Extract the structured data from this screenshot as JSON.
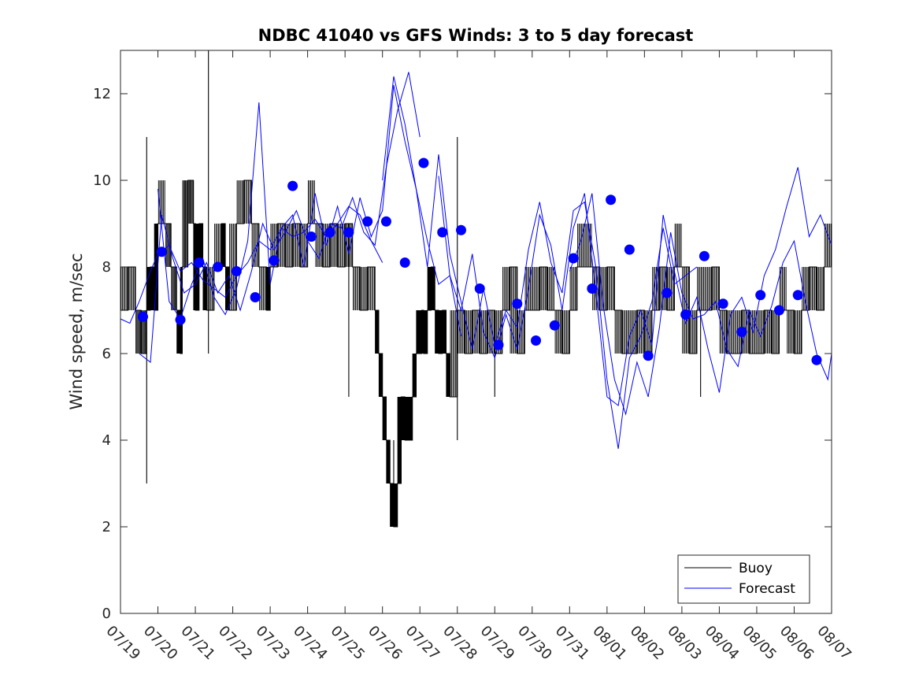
{
  "chart_data": {
    "type": "line",
    "title": "NDBC 41040 vs GFS Winds: 3 to 5 day forecast",
    "xlabel": "",
    "ylabel": "Wind speed, m/sec",
    "ylim": [
      0,
      13
    ],
    "yticks": [
      0,
      2,
      4,
      6,
      8,
      10,
      12
    ],
    "xlim_days": [
      0,
      19
    ],
    "xticks": [
      "07/19",
      "07/20",
      "07/21",
      "07/22",
      "07/23",
      "07/24",
      "07/25",
      "07/26",
      "07/27",
      "07/28",
      "07/29",
      "07/30",
      "07/31",
      "08/01",
      "08/02",
      "08/03",
      "08/04",
      "08/05",
      "08/06",
      "08/07"
    ],
    "grid": false,
    "legend": {
      "placement": "bottom-right",
      "entries": [
        "Buoy",
        "Forecast"
      ]
    },
    "colors": {
      "buoy": "#000000",
      "forecast": "#0000ff",
      "verification": "#0000ff",
      "axis": "#262626"
    },
    "buoy_series": {
      "name": "Buoy",
      "x": [
        0,
        0.2,
        0.4,
        0.55,
        0.7,
        0.8,
        0.9,
        1.0,
        1.2,
        1.35,
        1.5,
        1.6,
        1.65,
        1.8,
        1.95,
        2.0,
        2.1,
        2.2,
        2.3,
        2.5,
        2.7,
        2.8,
        2.9,
        3.1,
        3.3,
        3.5,
        3.7,
        3.9,
        4.0,
        4.2,
        4.4,
        4.6,
        4.8,
        5.0,
        5.2,
        5.4,
        5.6,
        5.8,
        6.0,
        6.2,
        6.4,
        6.6,
        6.8,
        6.9,
        7.0,
        7.1,
        7.2,
        7.3,
        7.4,
        7.5,
        7.6,
        7.7,
        7.8,
        7.9,
        8.0,
        8.05,
        8.1,
        8.2,
        8.3,
        8.4,
        8.5,
        8.6,
        8.7,
        8.8,
        9.0,
        9.2,
        9.4,
        9.6,
        9.8,
        10.0,
        10.2,
        10.4,
        10.6,
        10.8,
        11.0,
        11.2,
        11.4,
        11.6,
        11.8,
        12.0,
        12.2,
        12.4,
        12.6,
        12.8,
        13.0,
        13.2,
        13.4,
        13.6,
        13.8,
        14.0,
        14.2,
        14.4,
        14.6,
        14.8,
        15.0,
        15.2,
        15.4,
        15.6,
        15.8,
        16.0,
        16.2,
        16.4,
        16.6,
        16.8,
        17.0,
        17.2,
        17.4,
        17.6,
        17.8,
        18.0,
        18.2,
        18.4,
        18.6,
        18.8,
        19.0
      ],
      "values": [
        7,
        8,
        7,
        6,
        7,
        8,
        7,
        9,
        9,
        8,
        7,
        6,
        8,
        10,
        9,
        7,
        9,
        8,
        7,
        8,
        9,
        8,
        7,
        9,
        10,
        9,
        8,
        7,
        8,
        9,
        8,
        9,
        8,
        9,
        9,
        8,
        9,
        8,
        9,
        8,
        7,
        8,
        7,
        6,
        5,
        4,
        3,
        2,
        3,
        5,
        4,
        4,
        5,
        6,
        6,
        7,
        6,
        7,
        8,
        7,
        6,
        7,
        6,
        5,
        7,
        6,
        7,
        6,
        7,
        6,
        7,
        8,
        6,
        7,
        7,
        8,
        7,
        7,
        6,
        7,
        8,
        8,
        8,
        7,
        8,
        7,
        6,
        6,
        7,
        6,
        7,
        8,
        7,
        8,
        8,
        6,
        7,
        7,
        8,
        7,
        6,
        6,
        7,
        6,
        6,
        7,
        6,
        7,
        7,
        6,
        7,
        8,
        7,
        8,
        9
      ]
    },
    "buoy_spikes": [
      {
        "x": 0.7,
        "values": [
          3,
          11
        ]
      },
      {
        "x": 2.35,
        "values": [
          6,
          13
        ]
      },
      {
        "x": 6.1,
        "values": [
          5,
          9
        ]
      },
      {
        "x": 7.3,
        "values": [
          2,
          4
        ]
      },
      {
        "x": 9.0,
        "values": [
          4,
          11
        ]
      },
      {
        "x": 10.0,
        "values": [
          5,
          7
        ]
      },
      {
        "x": 15.5,
        "values": [
          5,
          7
        ]
      }
    ],
    "forecast_series": [
      {
        "name": "Forecast",
        "x": [
          0,
          0.25,
          0.5,
          0.8,
          1.0,
          1.3,
          1.6,
          1.9,
          2.2,
          2.5,
          2.8,
          3.1,
          3.4,
          3.7,
          4.0,
          4.3,
          4.6,
          4.9,
          5.2,
          5.5,
          5.8,
          6.1,
          6.4,
          6.7,
          7.0
        ],
        "values": [
          6.8,
          6.7,
          7.2,
          7.9,
          8.3,
          8.5,
          7.9,
          8.1,
          7.7,
          7.5,
          7.3,
          7.8,
          8.1,
          8.6,
          8.4,
          8.9,
          8.7,
          8.8,
          9.1,
          8.7,
          9.0,
          9.4,
          9.2,
          8.6,
          8.1
        ]
      },
      {
        "name": "Forecast",
        "x": [
          0.5,
          0.8,
          1.1,
          1.4,
          1.7,
          2.0,
          2.3,
          2.6,
          2.9,
          3.2,
          3.5,
          3.8,
          4.1,
          4.4,
          4.7,
          5.0,
          5.3,
          5.6,
          5.9,
          6.2,
          6.5,
          6.8,
          7.1,
          7.4,
          7.7,
          8.0
        ],
        "values": [
          6.0,
          5.8,
          9.2,
          8.2,
          7.4,
          7.6,
          8.1,
          7.4,
          7.8,
          7.0,
          7.9,
          9.0,
          8.4,
          8.8,
          9.3,
          8.6,
          8.2,
          9.0,
          8.9,
          9.6,
          8.8,
          8.5,
          10.3,
          11.6,
          12.5,
          11.0
        ]
      },
      {
        "name": "Forecast",
        "x": [
          1.0,
          1.3,
          1.6,
          1.9,
          2.2,
          2.5,
          2.8,
          3.1,
          3.4,
          3.7,
          4.0,
          4.3,
          4.6,
          4.9,
          5.2,
          5.5,
          5.8,
          6.1,
          6.4,
          6.7,
          7.0,
          7.3,
          7.6,
          7.9,
          8.2,
          8.5,
          8.8,
          9.1
        ],
        "values": [
          9.8,
          7.2,
          6.8,
          7.6,
          8.2,
          7.3,
          6.9,
          7.5,
          8.6,
          11.8,
          7.6,
          8.9,
          9.2,
          8.0,
          9.7,
          8.5,
          9.4,
          8.3,
          9.6,
          8.7,
          9.3,
          12.2,
          10.9,
          9.8,
          8.6,
          7.6,
          7.8,
          6.4
        ]
      },
      {
        "name": "Forecast",
        "x": [
          7.0,
          7.3,
          7.6,
          7.9,
          8.2,
          8.5,
          8.8,
          9.1,
          9.4,
          9.7,
          10.0,
          10.3,
          10.6,
          10.9,
          11.2,
          11.5,
          11.8,
          12.1,
          12.4,
          12.7,
          13.0,
          13.3,
          13.6,
          13.9,
          14.2,
          14.5,
          14.8,
          15.1,
          15.4
        ],
        "values": [
          10.0,
          12.4,
          11.3,
          9.8,
          8.0,
          10.6,
          8.3,
          7.2,
          6.1,
          7.5,
          6.2,
          7.0,
          6.6,
          8.4,
          9.5,
          8.1,
          7.4,
          9.3,
          9.5,
          8.0,
          5.4,
          3.8,
          5.9,
          6.4,
          7.2,
          8.9,
          7.6,
          7.8,
          8.0
        ]
      },
      {
        "name": "Forecast",
        "x": [
          8.5,
          8.8,
          9.1,
          9.4,
          9.7,
          10.0,
          10.3,
          10.6,
          10.9,
          11.2,
          11.5,
          11.8,
          12.1,
          12.4,
          12.7,
          13.0,
          13.3,
          13.6,
          13.9,
          14.2,
          14.5,
          14.8,
          15.1,
          15.4,
          15.7,
          16.0,
          16.3,
          16.6,
          16.9,
          17.2,
          17.5,
          17.8,
          18.1,
          18.4,
          18.7,
          19.0
        ],
        "values": [
          10.1,
          7.8,
          7.0,
          8.3,
          6.5,
          5.9,
          6.9,
          6.1,
          7.5,
          9.2,
          8.5,
          7.0,
          8.9,
          9.7,
          7.4,
          5.0,
          4.8,
          6.4,
          7.0,
          6.2,
          9.2,
          7.9,
          6.7,
          7.3,
          6.1,
          5.1,
          6.9,
          7.3,
          6.5,
          7.8,
          8.4,
          9.4,
          10.3,
          8.7,
          9.2,
          8.5
        ]
      },
      {
        "name": "Forecast",
        "x": [
          12.0,
          12.3,
          12.6,
          12.9,
          13.2,
          13.5,
          13.8,
          14.1,
          14.4,
          14.7,
          15.0,
          15.3,
          15.6,
          15.9,
          16.2,
          16.5,
          16.8,
          17.1,
          17.4,
          17.7,
          18.0,
          18.3,
          18.6,
          18.9,
          19.0
        ],
        "values": [
          7.9,
          8.6,
          9.7,
          7.1,
          5.4,
          4.6,
          5.8,
          5.0,
          6.6,
          8.8,
          7.4,
          6.8,
          6.9,
          7.2,
          6.1,
          5.7,
          7.0,
          6.4,
          7.1,
          8.1,
          8.6,
          7.2,
          6.0,
          5.4,
          6.0
        ]
      }
    ],
    "verification_points": {
      "x": [
        0.6,
        1.1,
        1.6,
        2.1,
        2.6,
        3.1,
        3.6,
        4.1,
        4.6,
        5.1,
        5.6,
        6.1,
        6.6,
        7.1,
        7.6,
        8.1,
        8.6,
        9.1,
        9.6,
        10.1,
        10.6,
        11.1,
        11.6,
        12.1,
        12.6,
        13.1,
        13.6,
        14.1,
        14.6,
        15.1,
        15.6,
        16.1,
        16.6,
        17.1,
        17.6,
        18.1,
        18.6
      ],
      "values": [
        6.85,
        8.35,
        6.78,
        8.1,
        8.0,
        7.9,
        7.3,
        8.15,
        9.87,
        8.7,
        8.8,
        8.8,
        9.05,
        9.05,
        8.1,
        10.4,
        8.8,
        8.85,
        7.5,
        6.2,
        7.15,
        6.3,
        6.65,
        8.2,
        7.5,
        9.55,
        8.4,
        5.95,
        7.4,
        6.9,
        8.25,
        7.15,
        6.5,
        7.35,
        7.0,
        7.35,
        5.85
      ]
    }
  }
}
